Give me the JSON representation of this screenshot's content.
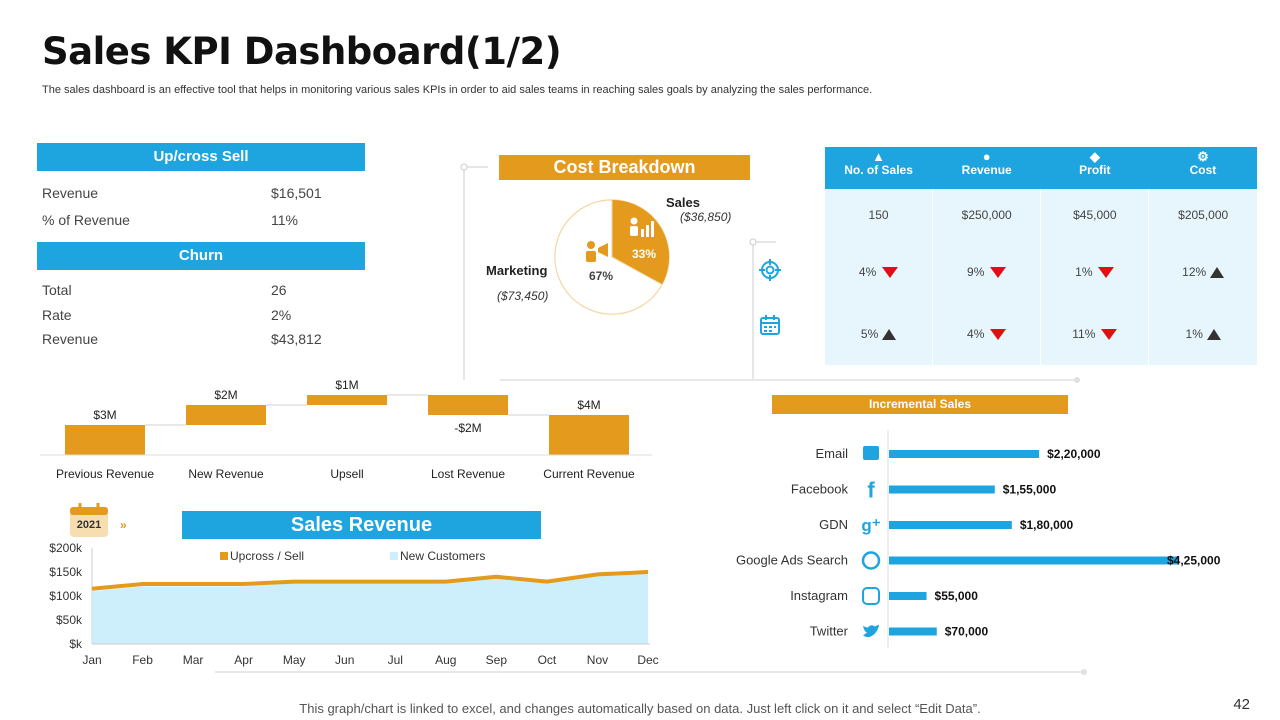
{
  "header": {
    "title": "Sales KPI Dashboard(1/2)",
    "subtitle": "The sales dashboard is an effective tool that helps in monitoring various sales KPIs in order to aid sales teams in reaching sales goals by analyzing the sales performance."
  },
  "upcross": {
    "title": "Up/cross Sell",
    "rows": [
      {
        "label": "Revenue",
        "value": "$16,501"
      },
      {
        "label": "% of Revenue",
        "value": "11%"
      }
    ]
  },
  "churn": {
    "title": "Churn",
    "rows": [
      {
        "label": "Total",
        "value": "26"
      },
      {
        "label": "Rate",
        "value": "2%"
      },
      {
        "label": "Revenue",
        "value": "$43,812"
      }
    ]
  },
  "kpi_table": {
    "headers": [
      "No. of Sales",
      "Revenue",
      "Profit",
      "Cost"
    ],
    "values": [
      "150",
      "$250,000",
      "$45,000",
      "$205,000"
    ],
    "row2": [
      {
        "text": "4%",
        "trend": "down"
      },
      {
        "text": "9%",
        "trend": "down"
      },
      {
        "text": "1%",
        "trend": "down"
      },
      {
        "text": "12%",
        "trend": "up"
      }
    ],
    "row3": [
      {
        "text": "5%",
        "trend": "up"
      },
      {
        "text": "4%",
        "trend": "down"
      },
      {
        "text": "11%",
        "trend": "down"
      },
      {
        "text": "1%",
        "trend": "up"
      }
    ]
  },
  "colors": {
    "blue": "#1ea5e0",
    "orange": "#e49a1c",
    "light_blue": "#cdeffb",
    "down": "#e11010",
    "up": "#333333"
  },
  "year_badge": "2021",
  "footer": {
    "note": "This graph/chart is linked to excel,  and changes automatically based on data. Just left click on it and select “Edit Data”.",
    "page": "42"
  },
  "chart_data": [
    {
      "id": "cost-breakdown",
      "type": "pie",
      "title": "Cost Breakdown",
      "slices": [
        {
          "label": "Sales",
          "percent": 33,
          "percent_label": "33%",
          "amount": "($36,850)"
        },
        {
          "label": "Marketing",
          "percent": 67,
          "percent_label": "67%",
          "amount": "($73,450)"
        }
      ]
    },
    {
      "id": "revenue-waterfall",
      "type": "bar",
      "subtype": "waterfall",
      "categories": [
        "Previous Revenue",
        "New Revenue",
        "Upsell",
        "Lost Revenue",
        "Current Revenue"
      ],
      "values": [
        3,
        2,
        1,
        -2,
        4
      ],
      "labels": [
        "$3M",
        "$2M",
        "$1M",
        "-$2M",
        "$4M"
      ]
    },
    {
      "id": "sales-revenue",
      "type": "area",
      "title": "Sales Revenue",
      "categories": [
        "Jan",
        "Feb",
        "Mar",
        "Apr",
        "May",
        "Jun",
        "Jul",
        "Aug",
        "Sep",
        "Oct",
        "Nov",
        "Dec"
      ],
      "ylim": [
        0,
        200
      ],
      "yticks": [
        "$k",
        "$50k",
        "$100k",
        "$150k",
        "$200k"
      ],
      "series": [
        {
          "name": "Upcross / Sell",
          "values": [
            115,
            125,
            125,
            125,
            130,
            130,
            130,
            130,
            140,
            130,
            145,
            150
          ]
        },
        {
          "name": "New Customers",
          "values": [
            110,
            120,
            120,
            120,
            127,
            127,
            127,
            127,
            137,
            127,
            142,
            155
          ]
        }
      ]
    },
    {
      "id": "incremental-sales",
      "type": "bar",
      "orientation": "horizontal",
      "title": "Incremental Sales",
      "categories": [
        "Email",
        "Facebook",
        "GDN",
        "Google Ads Search",
        "Instagram",
        "Twitter"
      ],
      "icons": [
        "email-icon",
        "facebook-icon",
        "google-plus-icon",
        "globe-icon",
        "instagram-icon",
        "twitter-icon"
      ],
      "values": [
        220000,
        155000,
        180000,
        425000,
        55000,
        70000
      ],
      "labels": [
        "$2,20,000",
        "$1,55,000",
        "$1,80,000",
        "$4,25,000",
        "$55,000",
        "$70,000"
      ]
    }
  ]
}
